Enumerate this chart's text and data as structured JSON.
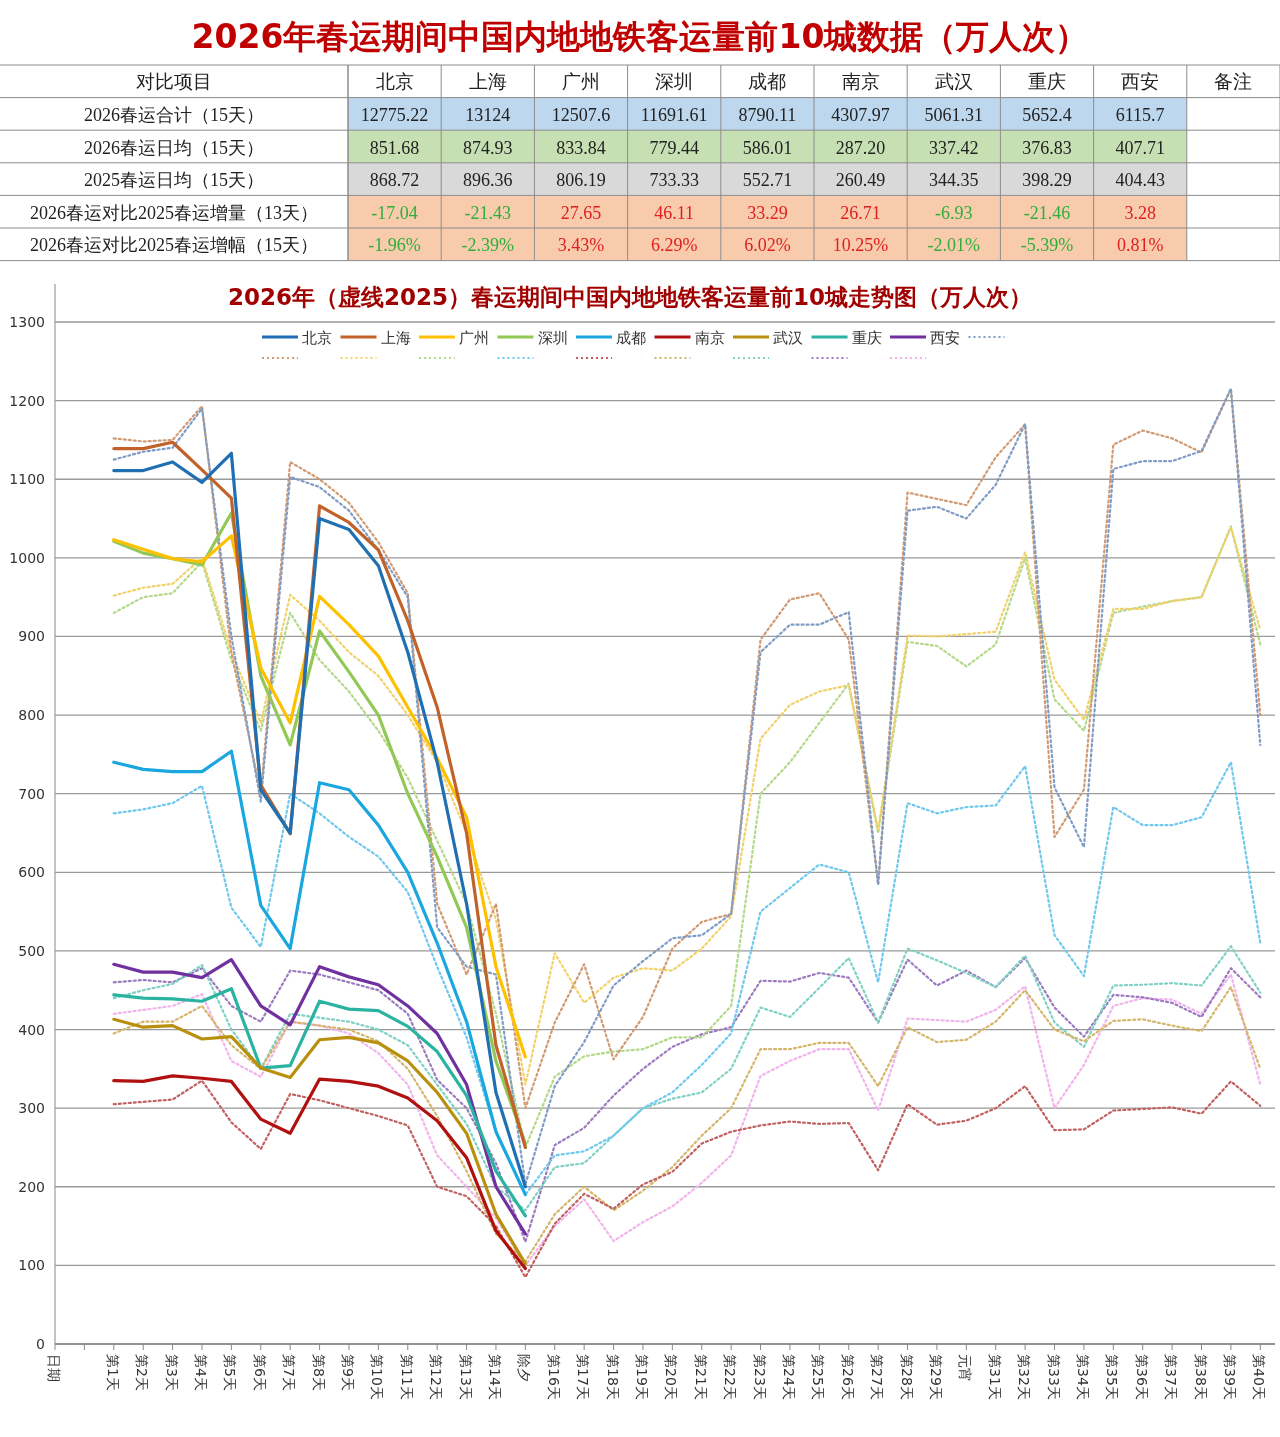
{
  "chart_data": [
    {
      "type": "heatmap",
      "title": "2026年春运期间中国内地地铁客运量前10城数据（万人次）",
      "ylabel": "对比项目",
      "categories": [
        "北京",
        "上海",
        "广州",
        "深圳",
        "成都",
        "南京",
        "武汉",
        "重庆",
        "西安",
        "备注"
      ],
      "y_categories": [
        "2026春运合计（15天）",
        "2026春运日均（15天）",
        "2025春运日均（15天）",
        "2026春运对比2025春运增量（13天）",
        "2026春运对比2025春运增幅（15天）"
      ],
      "colors": [
        "#bdd7ee",
        "#c6e0b4",
        "#d9d9d9",
        "#f8cbad",
        "#f8cbad"
      ],
      "data_labels": true,
      "cells": [
        [
          12775.22,
          13124,
          12507.6,
          11691.61,
          8790.11,
          4307.97,
          5061.31,
          5652.4,
          6115.7,
          null
        ],
        [
          851.68,
          874.93,
          833.84,
          779.44,
          586.01,
          287.2,
          337.42,
          376.83,
          407.71,
          null
        ],
        [
          868.72,
          896.36,
          806.19,
          733.33,
          552.71,
          260.49,
          344.35,
          398.29,
          404.43,
          null
        ],
        [
          -17.04,
          -21.43,
          27.65,
          46.11,
          33.29,
          26.71,
          -6.93,
          -21.46,
          3.28,
          null
        ],
        [
          -1.96,
          -2.39,
          3.43,
          6.29,
          6.02,
          10.25,
          -2.01,
          -5.39,
          0.81,
          null
        ]
      ],
      "cell_labels": [
        [
          "12775.22",
          "13124",
          "12507.6",
          "11691.61",
          "8790.11",
          "4307.97",
          "5061.31",
          "5652.4",
          "6115.7",
          null
        ],
        [
          "851.68",
          "874.93",
          "833.84",
          "779.44",
          "586.01",
          "287.20",
          "337.42",
          "376.83",
          "407.71",
          null
        ],
        [
          "868.72",
          "896.36",
          "806.19",
          "733.33",
          "552.71",
          "260.49",
          "344.35",
          "398.29",
          "404.43",
          null
        ],
        [
          "-17.04",
          "-21.43",
          "27.65",
          "46.11",
          "33.29",
          "26.71",
          "-6.93",
          "-21.46",
          "3.28",
          null
        ],
        [
          "-1.96%",
          "-2.39%",
          "3.43%",
          "6.29%",
          "6.02%",
          "10.25%",
          "-2.01%",
          "-5.39%",
          "0.81%",
          null
        ]
      ]
    },
    {
      "type": "line",
      "title": "2026年（虚线2025）春运期间中国内地地铁客运量前10城走势图（万人次）",
      "categories": [
        "日期",
        null,
        "第1天",
        "第2天",
        "第3天",
        "第4天",
        "第5天",
        "第6天",
        "第7天",
        "第8天",
        "第9天",
        "第10天",
        "第11天",
        "第12天",
        "第13天",
        "第14天",
        "除夕",
        "第16天",
        "第17天",
        "第18天",
        "第19天",
        "第20天",
        "第21天",
        "第22天",
        "第23天",
        "第24天",
        "第25天",
        "第26天",
        "第27天",
        "第28天",
        "第29天",
        "元宵",
        "第31天",
        "第32天",
        "第33天",
        "第34天",
        "第35天",
        "第36天",
        "第37天",
        "第38天",
        "第39天",
        "第40天"
      ],
      "ylim": [
        0,
        1300
      ],
      "yticks": [
        0,
        100,
        200,
        300,
        400,
        500,
        600,
        700,
        800,
        900,
        1000,
        1100,
        1200,
        1300
      ],
      "grid": "y",
      "legend": "top",
      "series": [
        {
          "name": "北京",
          "color": "#1f6fb2",
          "line_style": "solid",
          "values": [
            null,
            null,
            1111,
            1111,
            1122,
            1096,
            1133,
            705,
            650,
            1050,
            1036,
            990,
            880,
            740,
            560,
            320,
            200,
            null,
            null,
            null,
            null,
            null,
            null,
            null,
            null,
            null,
            null,
            null,
            null,
            null,
            null,
            null,
            null,
            null,
            null,
            null,
            null,
            null,
            null,
            null,
            null,
            null
          ]
        },
        {
          "name": "上海",
          "color": "#c0622a",
          "line_style": "solid",
          "values": [
            null,
            null,
            1139,
            1139,
            1147,
            1112,
            1076,
            711,
            649,
            1066,
            1045,
            1010,
            920,
            810,
            650,
            380,
            250,
            null,
            null,
            null,
            null,
            null,
            null,
            null,
            null,
            null,
            null,
            null,
            null,
            null,
            null,
            null,
            null,
            null,
            null,
            null,
            null,
            null,
            null,
            null,
            null,
            null
          ]
        },
        {
          "name": "广州",
          "color": "#ffc000",
          "line_style": "solid",
          "values": [
            null,
            null,
            1023,
            1011,
            999,
            995,
            1028,
            860,
            790,
            951,
            915,
            875,
            810,
            745,
            670,
            480,
            365,
            null,
            null,
            null,
            null,
            null,
            null,
            null,
            null,
            null,
            null,
            null,
            null,
            null,
            null,
            null,
            null,
            null,
            null,
            null,
            null,
            null,
            null,
            null,
            null,
            null
          ]
        },
        {
          "name": "深圳",
          "color": "#92c855",
          "line_style": "solid",
          "values": [
            null,
            null,
            1021,
            1006,
            999,
            991,
            1057,
            850,
            762,
            907,
            855,
            800,
            700,
            620,
            530,
            360,
            255,
            null,
            null,
            null,
            null,
            null,
            null,
            null,
            null,
            null,
            null,
            null,
            null,
            null,
            null,
            null,
            null,
            null,
            null,
            null,
            null,
            null,
            null,
            null,
            null,
            null
          ]
        },
        {
          "name": "成都",
          "color": "#1aa7e0",
          "line_style": "solid",
          "values": [
            null,
            null,
            740,
            731,
            728,
            728,
            754,
            558,
            503,
            714,
            705,
            660,
            600,
            510,
            410,
            270,
            190,
            null,
            null,
            null,
            null,
            null,
            null,
            null,
            null,
            null,
            null,
            null,
            null,
            null,
            null,
            null,
            null,
            null,
            null,
            null,
            null,
            null,
            null,
            null,
            null,
            null
          ]
        },
        {
          "name": "南京",
          "color": "#b01010",
          "line_style": "solid",
          "values": [
            null,
            null,
            335,
            334,
            341,
            338,
            334,
            286,
            268,
            337,
            334,
            328,
            313,
            284,
            237,
            144,
            96,
            null,
            null,
            null,
            null,
            null,
            null,
            null,
            null,
            null,
            null,
            null,
            null,
            null,
            null,
            null,
            null,
            null,
            null,
            null,
            null,
            null,
            null,
            null,
            null,
            null
          ]
        },
        {
          "name": "武汉",
          "color": "#b8900e",
          "line_style": "solid",
          "values": [
            null,
            null,
            413,
            403,
            405,
            388,
            391,
            351,
            339,
            387,
            390,
            383,
            360,
            320,
            268,
            165,
            102,
            null,
            null,
            null,
            null,
            null,
            null,
            null,
            null,
            null,
            null,
            null,
            null,
            null,
            null,
            null,
            null,
            null,
            null,
            null,
            null,
            null,
            null,
            null,
            null,
            null
          ]
        },
        {
          "name": "重庆",
          "color": "#2ab3a0",
          "line_style": "solid",
          "values": [
            null,
            null,
            444,
            440,
            439,
            436,
            452,
            351,
            354,
            436,
            426,
            424,
            404,
            372,
            316,
            220,
            163,
            null,
            null,
            null,
            null,
            null,
            null,
            null,
            null,
            null,
            null,
            null,
            null,
            null,
            null,
            null,
            null,
            null,
            null,
            null,
            null,
            null,
            null,
            null,
            null,
            null
          ]
        },
        {
          "name": "西安",
          "color": "#7030a0",
          "line_style": "solid",
          "values": [
            null,
            null,
            483,
            473,
            473,
            466,
            489,
            430,
            406,
            480,
            467,
            457,
            430,
            395,
            330,
            200,
            140,
            null,
            null,
            null,
            null,
            null,
            null,
            null,
            null,
            null,
            null,
            null,
            null,
            null,
            null,
            null,
            null,
            null,
            null,
            null,
            null,
            null,
            null,
            null,
            null,
            null
          ]
        },
        {
          "color": "#7f9cc4",
          "line_style": "dotted",
          "values": [
            null,
            null,
            1125,
            1135,
            1140,
            1190,
            900,
            690,
            1103,
            1090,
            1060,
            1010,
            950,
            530,
            480,
            470,
            203,
            328,
            384,
            456,
            487,
            516,
            520,
            547,
            880,
            915,
            915,
            931,
            584,
            1060,
            1065,
            1050,
            1093,
            1170,
            708,
            632,
            1113,
            1123,
            1123,
            1136,
            1215,
            762
          ]
        },
        {
          "color": "#d19a72",
          "line_style": "dotted",
          "values": [
            null,
            null,
            1152,
            1148,
            1150,
            1193,
            880,
            700,
            1122,
            1100,
            1070,
            1020,
            955,
            560,
            470,
            560,
            300,
            409,
            483,
            362,
            416,
            503,
            537,
            547,
            896,
            947,
            955,
            896,
            585,
            1083,
            1075,
            1067,
            1128,
            1170,
            645,
            705,
            1144,
            1162,
            1152,
            1134,
            1215,
            800
          ]
        },
        {
          "color": "#f2d16b",
          "line_style": "dotted",
          "values": [
            null,
            null,
            952,
            962,
            967,
            1000,
            880,
            790,
            953,
            920,
            880,
            850,
            800,
            740,
            650,
            540,
            330,
            497,
            434,
            466,
            478,
            475,
            503,
            544,
            770,
            813,
            830,
            838,
            654,
            901,
            900,
            903,
            906,
            1007,
            845,
            794,
            935,
            935,
            945,
            950,
            1039,
            908
          ]
        },
        {
          "color": "#b4d88a",
          "line_style": "dotted",
          "values": [
            null,
            null,
            930,
            950,
            955,
            995,
            870,
            780,
            930,
            870,
            830,
            780,
            720,
            640,
            560,
            420,
            250,
            340,
            366,
            372,
            375,
            390,
            390,
            430,
            700,
            740,
            790,
            840,
            650,
            893,
            888,
            862,
            890,
            1000,
            820,
            780,
            930,
            938,
            945,
            950,
            1040,
            890
          ]
        },
        {
          "color": "#6fc8ee",
          "line_style": "dotted",
          "values": [
            null,
            null,
            675,
            680,
            688,
            710,
            555,
            505,
            700,
            675,
            645,
            620,
            575,
            480,
            390,
            270,
            190,
            240,
            245,
            265,
            300,
            320,
            355,
            395,
            550,
            580,
            610,
            600,
            460,
            688,
            675,
            683,
            685,
            735,
            520,
            468,
            683,
            660,
            660,
            670,
            740,
            510
          ]
        },
        {
          "color": "#c06060",
          "line_style": "dotted",
          "values": [
            null,
            null,
            305,
            308,
            311,
            335,
            282,
            248,
            318,
            310,
            300,
            290,
            278,
            200,
            188,
            150,
            85,
            153,
            191,
            172,
            203,
            219,
            255,
            270,
            278,
            283,
            280,
            281,
            221,
            305,
            279,
            284,
            300,
            328,
            272,
            273,
            297,
            299,
            301,
            293,
            334,
            303
          ]
        },
        {
          "color": "#d4b56a",
          "line_style": "dotted",
          "values": [
            null,
            null,
            395,
            410,
            410,
            430,
            380,
            350,
            410,
            405,
            400,
            385,
            350,
            290,
            220,
            140,
            105,
            165,
            200,
            170,
            195,
            225,
            265,
            300,
            375,
            375,
            383,
            383,
            328,
            403,
            384,
            387,
            410,
            450,
            400,
            385,
            411,
            413,
            405,
            398,
            454,
            350
          ]
        },
        {
          "color": "#7fd1c4",
          "line_style": "dotted",
          "values": [
            null,
            null,
            440,
            450,
            458,
            482,
            400,
            350,
            420,
            415,
            410,
            400,
            380,
            330,
            280,
            200,
            170,
            225,
            230,
            265,
            300,
            312,
            320,
            350,
            428,
            416,
            453,
            491,
            409,
            503,
            488,
            472,
            454,
            494,
            409,
            378,
            456,
            457,
            459,
            456,
            506,
            447
          ]
        },
        {
          "color": "#9c7ac0",
          "line_style": "dotted",
          "values": [
            null,
            null,
            460,
            463,
            460,
            478,
            430,
            410,
            475,
            470,
            460,
            450,
            420,
            336,
            300,
            230,
            130,
            253,
            275,
            316,
            350,
            378,
            394,
            403,
            462,
            461,
            472,
            466,
            409,
            489,
            456,
            475,
            454,
            491,
            428,
            391,
            444,
            441,
            434,
            416,
            478,
            441
          ]
        },
        {
          "color": "#f2b3ec",
          "line_style": "dotted",
          "values": [
            null,
            null,
            420,
            425,
            430,
            445,
            360,
            340,
            410,
            405,
            395,
            370,
            330,
            240,
            200,
            160,
            100,
            150,
            184,
            131,
            155,
            175,
            205,
            240,
            341,
            360,
            375,
            375,
            297,
            414,
            412,
            410,
            425,
            455,
            300,
            355,
            430,
            440,
            438,
            420,
            470,
            330
          ]
        }
      ]
    }
  ]
}
